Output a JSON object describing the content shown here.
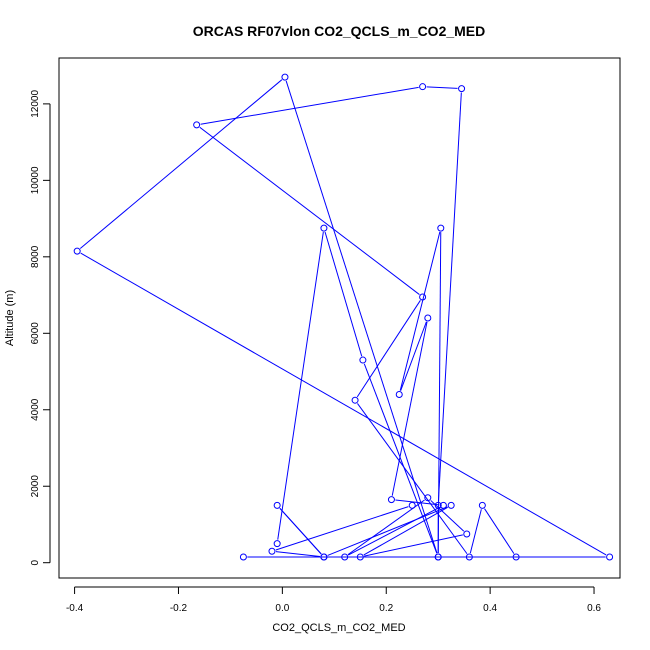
{
  "chart_data": {
    "type": "line",
    "title": "ORCAS RF07vlon CO2_QCLS_m_CO2_MED",
    "xlabel": "CO2_QCLS_m_CO2_MED",
    "ylabel": "Altitude (m)",
    "xlim": [
      -0.43,
      0.65
    ],
    "ylim": [
      -400,
      13200
    ],
    "xticks": [
      -0.4,
      -0.2,
      0.0,
      0.2,
      0.4,
      0.6
    ],
    "xtick_labels": [
      "-0.4",
      "-0.2",
      "0.0",
      "0.2",
      "0.4",
      "0.6"
    ],
    "yticks": [
      0,
      2000,
      4000,
      6000,
      8000,
      10000,
      12000
    ],
    "ytick_labels": [
      "0",
      "2000",
      "4000",
      "6000",
      "8000",
      "10000",
      "12000"
    ],
    "series": [
      {
        "color": "#0000ff",
        "marker": "open-circle",
        "points": [
          {
            "x": -0.01,
            "y": 500
          },
          {
            "x": 0.08,
            "y": 8750
          },
          {
            "x": 0.155,
            "y": 5300
          },
          {
            "x": 0.3,
            "y": 150
          },
          {
            "x": 0.005,
            "y": 12700
          },
          {
            "x": -0.395,
            "y": 8150
          },
          {
            "x": 0.63,
            "y": 150
          },
          {
            "x": -0.075,
            "y": 150
          },
          {
            "x": 0.45,
            "y": 150
          },
          {
            "x": 0.385,
            "y": 1500
          },
          {
            "x": 0.36,
            "y": 150
          },
          {
            "x": 0.14,
            "y": 4250
          },
          {
            "x": 0.27,
            "y": 6950
          },
          {
            "x": -0.165,
            "y": 11450
          },
          {
            "x": 0.27,
            "y": 12450
          },
          {
            "x": 0.345,
            "y": 12400
          },
          {
            "x": 0.3,
            "y": 1500
          },
          {
            "x": 0.3,
            "y": 150
          },
          {
            "x": 0.305,
            "y": 8750
          },
          {
            "x": 0.225,
            "y": 4400
          },
          {
            "x": 0.28,
            "y": 6400
          },
          {
            "x": 0.21,
            "y": 1650
          },
          {
            "x": 0.31,
            "y": 1500
          },
          {
            "x": 0.12,
            "y": 150
          },
          {
            "x": 0.28,
            "y": 1700
          },
          {
            "x": 0.355,
            "y": 750
          },
          {
            "x": 0.15,
            "y": 150
          },
          {
            "x": 0.325,
            "y": 1500
          },
          {
            "x": 0.08,
            "y": 150
          },
          {
            "x": -0.01,
            "y": 1500
          },
          {
            "x": 0.08,
            "y": 150
          },
          {
            "x": -0.02,
            "y": 300
          },
          {
            "x": 0.25,
            "y": 1500
          }
        ]
      }
    ]
  }
}
